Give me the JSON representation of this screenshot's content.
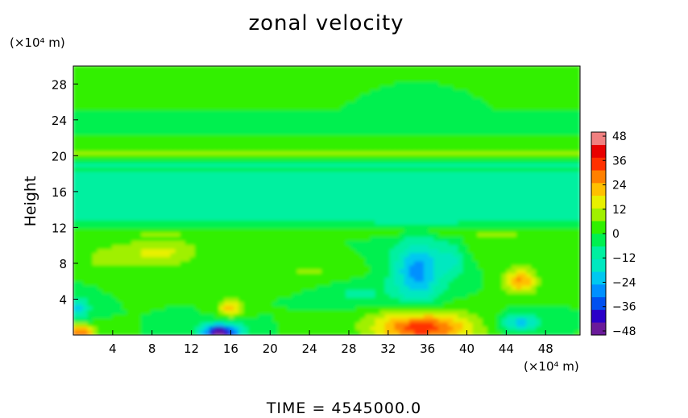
{
  "chart_data": {
    "type": "heatmap",
    "title": "zonal velocity",
    "ylabel": "Height",
    "xlabel": "",
    "y_unit": "(×10⁴ m)",
    "x_unit": "(×10⁴ m)",
    "footer": "TIME = 4545000.0",
    "x_range": [
      0,
      51.5
    ],
    "y_range": [
      0,
      30
    ],
    "x_ticks": [
      4,
      8,
      12,
      16,
      20,
      24,
      28,
      32,
      36,
      40,
      44,
      48
    ],
    "y_ticks": [
      4,
      8,
      12,
      16,
      20,
      24,
      28
    ],
    "colorbar": {
      "range": [
        -50,
        50
      ],
      "ticks": [
        48,
        36,
        24,
        12,
        0,
        -12,
        -24,
        -36,
        -48
      ],
      "colors": [
        "#6a1a9a",
        "#2a00c8",
        "#0050f0",
        "#0090ff",
        "#00c8f0",
        "#00e8c0",
        "#00f0a0",
        "#00f050",
        "#30f000",
        "#a0f000",
        "#e8f000",
        "#ffc000",
        "#ff8000",
        "#ff3000",
        "#e80000",
        "#f08080"
      ]
    },
    "background_u": 0,
    "features": [
      {
        "kind": "band",
        "y": 20.2,
        "half_width": 0.5,
        "u": 8
      },
      {
        "kind": "band",
        "y": 19.0,
        "half_width": 0.6,
        "u": -5
      },
      {
        "kind": "band",
        "y": 17.2,
        "half_width": 1.3,
        "u": -10
      },
      {
        "kind": "band",
        "y": 15.0,
        "half_width": 1.0,
        "u": -6
      },
      {
        "kind": "band",
        "y": 13.2,
        "half_width": 1.0,
        "u": -10
      },
      {
        "kind": "band",
        "y": 11.4,
        "half_width": 0.4,
        "u": 6
      },
      {
        "kind": "blob",
        "x": 9.0,
        "y": 9.2,
        "rx": 4.0,
        "ry": 1.6,
        "u": 14
      },
      {
        "kind": "blob",
        "x": 3.5,
        "y": 8.5,
        "rx": 3.0,
        "ry": 1.5,
        "u": 8
      },
      {
        "kind": "blob",
        "x": 35.0,
        "y": 7.0,
        "rx": 2.5,
        "ry": 3.5,
        "u": -28
      },
      {
        "kind": "blob",
        "x": 38.5,
        "y": 8.5,
        "rx": 1.5,
        "ry": 2.0,
        "u": -12
      },
      {
        "kind": "blob",
        "x": 45.5,
        "y": 6.0,
        "rx": 1.6,
        "ry": 1.4,
        "u": 26
      },
      {
        "kind": "blob",
        "x": 16.0,
        "y": 3.0,
        "rx": 1.2,
        "ry": 0.9,
        "u": 22
      },
      {
        "kind": "blob",
        "x": 15.0,
        "y": 0.3,
        "rx": 2.0,
        "ry": 0.9,
        "u": -48
      },
      {
        "kind": "blob",
        "x": 35.5,
        "y": 0.8,
        "rx": 5.0,
        "ry": 1.8,
        "u": 36
      },
      {
        "kind": "blob",
        "x": 45.5,
        "y": 1.3,
        "rx": 2.0,
        "ry": 0.9,
        "u": -22
      },
      {
        "kind": "blob",
        "x": 0.8,
        "y": 0.3,
        "rx": 1.5,
        "ry": 0.8,
        "u": 30
      },
      {
        "kind": "blob",
        "x": 0.5,
        "y": 3.0,
        "rx": 1.2,
        "ry": 1.2,
        "u": -20
      },
      {
        "kind": "blob",
        "x": 29.0,
        "y": 4.5,
        "rx": 3.0,
        "ry": 1.2,
        "u": -8
      },
      {
        "kind": "blob",
        "x": 24.0,
        "y": 7.0,
        "rx": 4.0,
        "ry": 1.2,
        "u": 7
      },
      {
        "kind": "blob",
        "x": 43.0,
        "y": 10.0,
        "rx": 4.0,
        "ry": 1.5,
        "u": 6
      }
    ]
  }
}
